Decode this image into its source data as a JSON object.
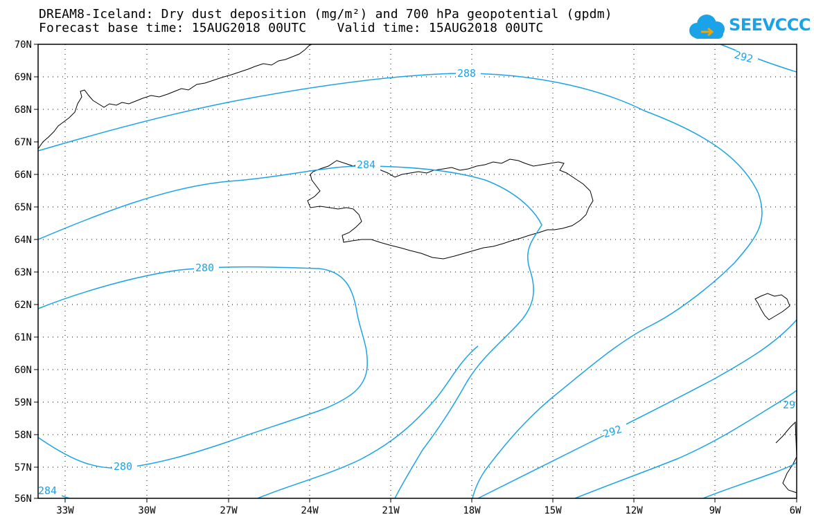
{
  "header": {
    "title_line1": "DREAM8-Iceland: Dry dust deposition (mg/m²) and 700 hPa geopotential (gpdm)",
    "title_line2": "Forecast base time: 15AUG2018 00UTC    Valid time: 15AUG2018 00UTC"
  },
  "logo": {
    "text": "SEEVCCC",
    "icon": "cloud-icon",
    "color": "#1aa3e8"
  },
  "map": {
    "lon_labels": [
      "33W",
      "30W",
      "27W",
      "24W",
      "21W",
      "18W",
      "15W",
      "12W",
      "9W",
      "6W"
    ],
    "lat_labels": [
      "70N",
      "69N",
      "68N",
      "67N",
      "66N",
      "65N",
      "64N",
      "63N",
      "62N",
      "61N",
      "60N",
      "59N",
      "58N",
      "57N",
      "56N"
    ],
    "contour_color": "#1aa3e8",
    "contour_labels": [
      "288",
      "292",
      "284",
      "280",
      "280",
      "284",
      "292",
      "29"
    ],
    "gridlines": "dotted"
  }
}
